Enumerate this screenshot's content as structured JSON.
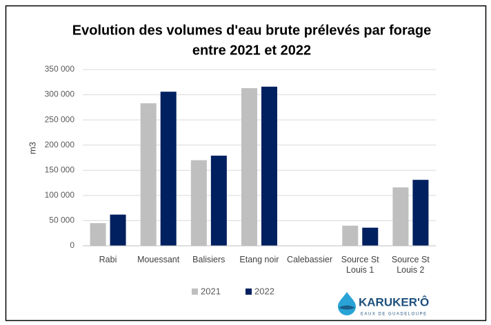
{
  "chart_data": {
    "type": "bar",
    "title": "Evolution des volumes d'eau brute prélevés par forage",
    "subtitle": "entre 2021 et 2022",
    "y_label": "m3",
    "categories": [
      "Rabi",
      "Mouessant",
      "Balisiers",
      "Etang noir",
      "Calebassier",
      "Source St Louis 1",
      "Source St Louis 2"
    ],
    "series": [
      {
        "name": "2021",
        "color": "#bfbfbf",
        "values": [
          45000,
          283000,
          170000,
          313000,
          0,
          40000,
          116000
        ]
      },
      {
        "name": "2022",
        "color": "#002060",
        "values": [
          62000,
          306000,
          179000,
          316000,
          0,
          36000,
          131000
        ]
      }
    ],
    "ylim": [
      0,
      350000
    ],
    "yticks": [
      0,
      {
        "value": 50000,
        "label": "50 000"
      },
      {
        "value": 100000,
        "label": "100 000"
      },
      {
        "value": 150000,
        "label": "150 000"
      },
      {
        "value": 200000,
        "label": "200 000"
      },
      {
        "value": 250000,
        "label": "250 000"
      },
      {
        "value": 300000,
        "label": "300 000"
      },
      {
        "value": 350000,
        "label": "350 000"
      }
    ],
    "grid": true,
    "legend": "bottom",
    "logo": {
      "name": "KARUKER'Ô",
      "tagline": "EAUX DE GUADELOUPE"
    }
  }
}
